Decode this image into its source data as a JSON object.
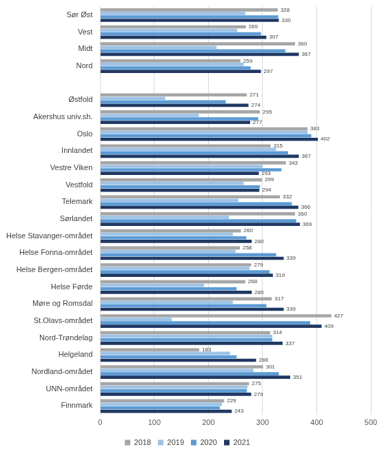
{
  "chart_data": {
    "type": "bar",
    "orientation": "horizontal",
    "grid": true,
    "legend": "bottom",
    "categories": [
      "Sør Øst",
      "Vest",
      "Midt",
      "Nord",
      null,
      "Østfold",
      "Akershus univ.sh.",
      "Oslo",
      "Innlandet",
      "Vestre Viken",
      "Vestfold",
      "Telemark",
      "Sørlandet",
      "Helse Stavanger-området",
      "Helse Fonna-området",
      "Helse Bergen-området",
      "Helse Førde",
      "Møre og Romsdal",
      "St.Olavs-området",
      "Nord-Trøndelag",
      "Helgeland",
      "Nordland-området",
      "UNN-området",
      "Finnmark"
    ],
    "series": [
      {
        "name": "2018",
        "color": "#a6a6a6",
        "data_labels": true,
        "values": [
          328,
          269,
          360,
          259,
          null,
          271,
          295,
          383,
          315,
          343,
          299,
          332,
          360,
          260,
          258,
          279,
          268,
          317,
          427,
          314,
          183,
          301,
          275,
          229
        ]
      },
      {
        "name": "2019",
        "color": "#9dc3e6",
        "values": [
          268,
          253,
          215,
          265,
          null,
          120,
          182,
          383,
          325,
          300,
          265,
          255,
          238,
          245,
          250,
          276,
          192,
          245,
          132,
          318,
          240,
          283,
          272,
          225
        ]
      },
      {
        "name": "2020",
        "color": "#5b9bd5",
        "values": [
          329,
          297,
          342,
          278,
          null,
          232,
          292,
          390,
          347,
          335,
          295,
          354,
          362,
          270,
          325,
          313,
          252,
          307,
          388,
          318,
          252,
          330,
          271,
          221
        ]
      },
      {
        "name": "2021",
        "color": "#1f3864",
        "data_labels": true,
        "values": [
          330,
          307,
          367,
          297,
          null,
          274,
          277,
          402,
          367,
          293,
          294,
          366,
          369,
          280,
          339,
          319,
          280,
          339,
          409,
          337,
          288,
          351,
          279,
          243
        ]
      }
    ],
    "xlim": [
      0,
      500
    ],
    "xticks": [
      0,
      100,
      200,
      300,
      400,
      500
    ]
  }
}
